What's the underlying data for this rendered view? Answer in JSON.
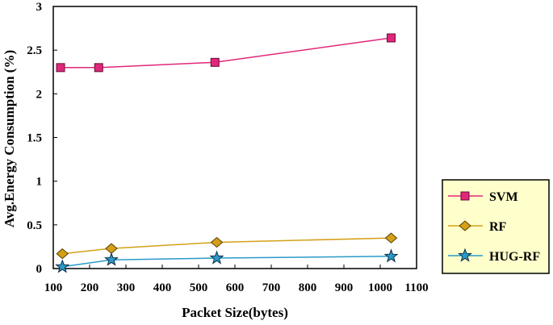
{
  "chart_data": {
    "type": "line",
    "title": "",
    "xlabel": "Packet Size(bytes)",
    "ylabel": "Avg.Energy Consumption (%)",
    "xlim": [
      100,
      1100
    ],
    "ylim": [
      0,
      3
    ],
    "xticks": [
      100,
      200,
      300,
      400,
      500,
      600,
      700,
      800,
      900,
      1000,
      1100
    ],
    "yticks": [
      0,
      0.5,
      1,
      1.5,
      2,
      2.5,
      3
    ],
    "grid": false,
    "legend_position": "right",
    "series": [
      {
        "name": "SVM",
        "color": "#e0287a",
        "marker": "square",
        "x": [
          120,
          225,
          545,
          1030
        ],
        "y": [
          2.3,
          2.3,
          2.36,
          2.64
        ]
      },
      {
        "name": "RF",
        "color": "#d4a017",
        "marker": "diamond",
        "x": [
          125,
          260,
          550,
          1030
        ],
        "y": [
          0.17,
          0.23,
          0.3,
          0.35
        ]
      },
      {
        "name": "HUG-RF",
        "color": "#2a9ac8",
        "marker": "star",
        "x": [
          125,
          260,
          550,
          1030
        ],
        "y": [
          0.02,
          0.1,
          0.12,
          0.14
        ]
      }
    ]
  }
}
